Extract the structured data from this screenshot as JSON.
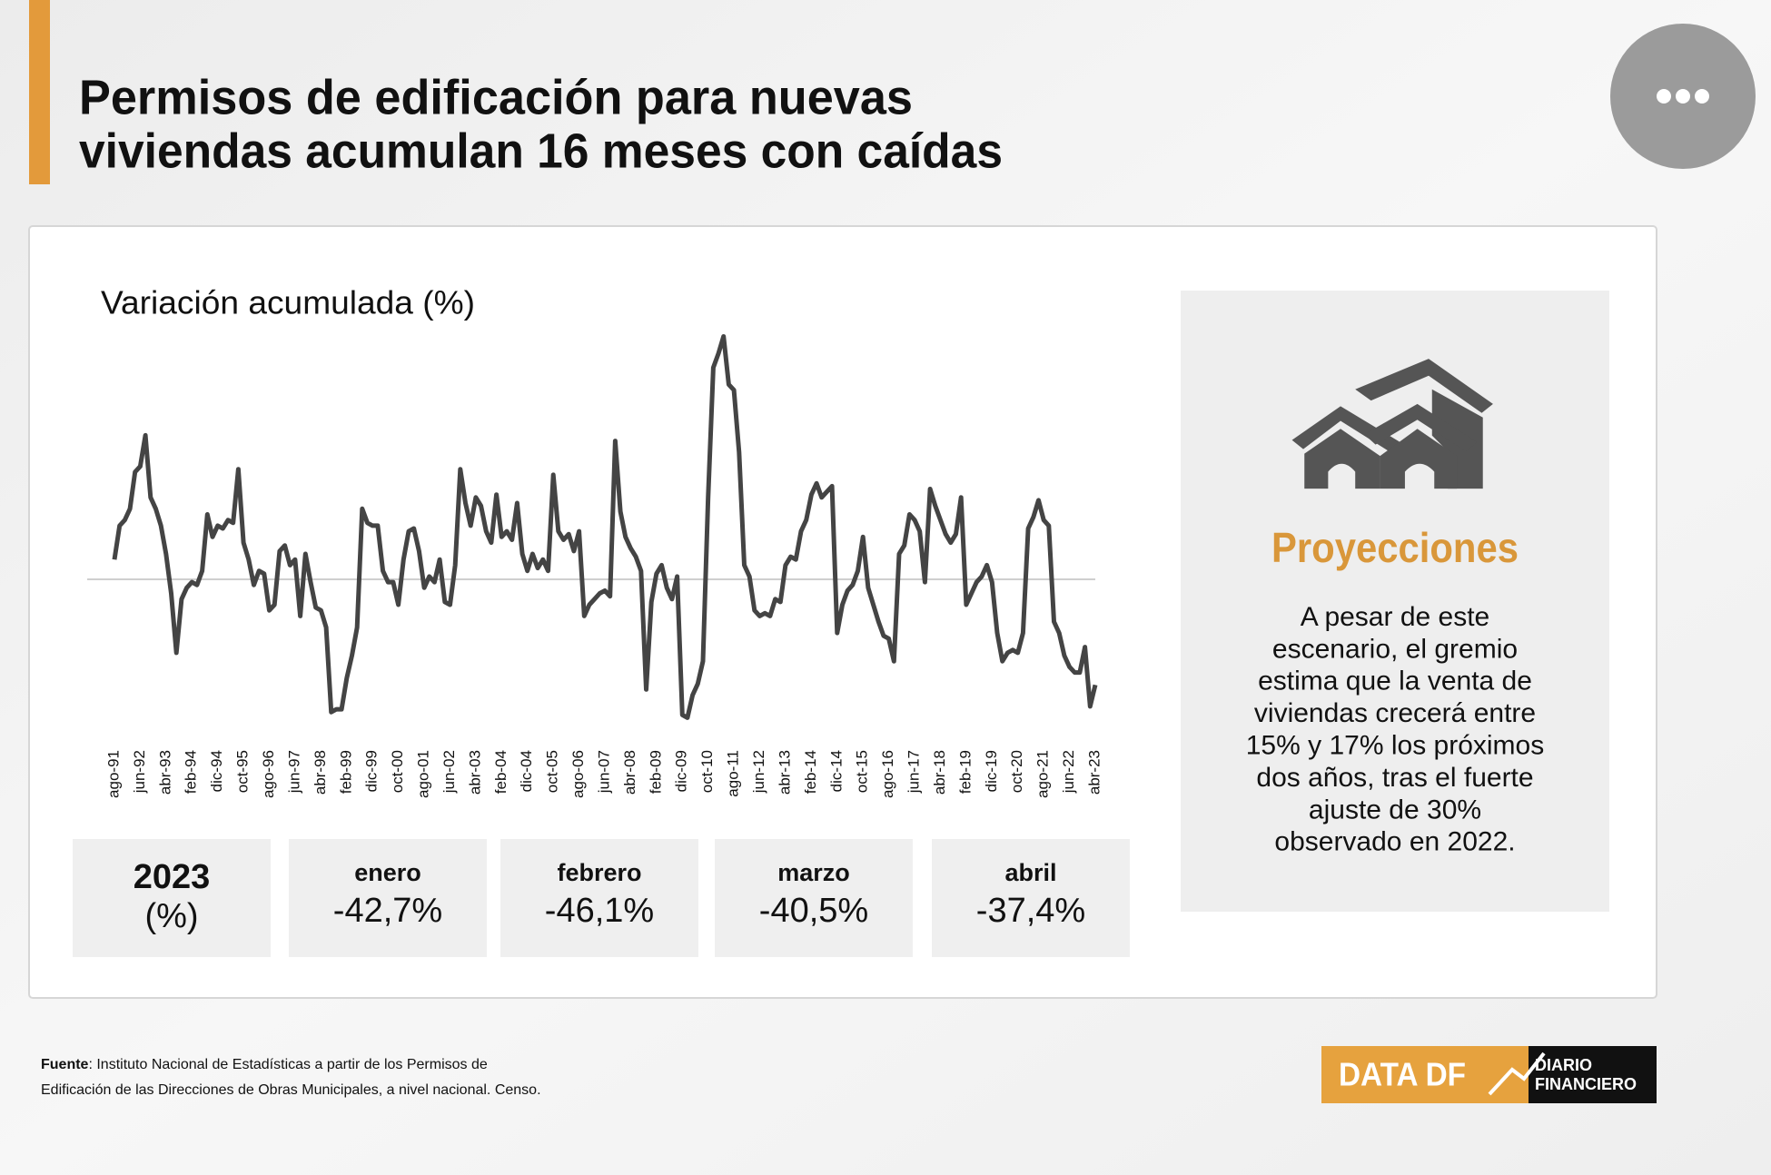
{
  "header": {
    "title_lines": [
      "Permisos de edificación para nuevas",
      "viviendas acumulan 16 meses con caídas"
    ]
  },
  "chart_data": {
    "type": "line",
    "y_label": "Variación acumulada (%)",
    "categories": [
      "ago-91",
      null,
      null,
      null,
      null,
      "jun-92",
      null,
      null,
      null,
      null,
      "abr-93",
      null,
      null,
      null,
      null,
      "feb-94",
      null,
      null,
      null,
      null,
      "dic-94",
      null,
      null,
      null,
      null,
      "oct-95",
      null,
      null,
      null,
      null,
      "ago-96",
      null,
      null,
      null,
      null,
      "jun-97",
      null,
      null,
      null,
      null,
      "abr-98",
      null,
      null,
      null,
      null,
      "feb-99",
      null,
      null,
      null,
      null,
      "dic-99",
      null,
      null,
      null,
      null,
      "oct-00",
      null,
      null,
      null,
      null,
      "ago-01",
      null,
      null,
      null,
      null,
      "jun-02",
      null,
      null,
      null,
      null,
      "abr-03",
      null,
      null,
      null,
      null,
      "feb-04",
      null,
      null,
      null,
      null,
      "dic-04",
      null,
      null,
      null,
      null,
      "oct-05",
      null,
      null,
      null,
      null,
      "ago-06",
      null,
      null,
      null,
      null,
      "jun-07",
      null,
      null,
      null,
      null,
      "abr-08",
      null,
      null,
      null,
      null,
      "feb-09",
      null,
      null,
      null,
      null,
      "dic-09",
      null,
      null,
      null,
      null,
      "oct-10",
      null,
      null,
      null,
      null,
      "ago-11",
      null,
      null,
      null,
      null,
      "jun-12",
      null,
      null,
      null,
      null,
      "abr-13",
      null,
      null,
      null,
      null,
      "feb-14",
      null,
      null,
      null,
      null,
      "dic-14",
      null,
      null,
      null,
      null,
      "oct-15",
      null,
      null,
      null,
      null,
      "ago-16",
      null,
      null,
      null,
      null,
      "jun-17",
      null,
      null,
      null,
      null,
      "abr-18",
      null,
      null,
      null,
      null,
      "feb-19",
      null,
      null,
      null,
      null,
      "dic-19",
      null,
      null,
      null,
      null,
      "oct-20",
      null,
      null,
      null,
      null,
      "ago-21",
      null,
      null,
      null,
      null,
      "jun-22",
      null,
      null,
      null,
      null,
      "abr-23"
    ],
    "values": [
      7,
      19,
      21,
      25,
      38,
      40,
      51,
      29,
      25,
      19,
      9,
      -5,
      -26,
      -7,
      -3,
      -1,
      -2,
      3,
      23,
      15,
      19,
      18,
      21,
      20,
      39,
      13,
      7,
      -2,
      3,
      2,
      -11,
      -9,
      10,
      12,
      5,
      7,
      -13,
      9,
      -1,
      -10,
      -11,
      -17,
      -47,
      -46,
      -46,
      -35,
      -27,
      -17,
      25,
      20,
      19,
      19,
      3,
      -1,
      -1,
      -9,
      7,
      17,
      18,
      10,
      -3,
      1,
      -1,
      7,
      -8,
      -9,
      5,
      39,
      27,
      19,
      29,
      26,
      17,
      13,
      30,
      15,
      17,
      14,
      27,
      9,
      3,
      9,
      4,
      7,
      3,
      37,
      17,
      14,
      16,
      10,
      17,
      -13,
      -9,
      -7,
      -5,
      -4,
      -6,
      49,
      24,
      15,
      11,
      8,
      3,
      -39,
      -8,
      2,
      5,
      -3,
      -7,
      1,
      -48,
      -49,
      -41,
      -37,
      -29,
      29,
      75,
      80,
      86,
      69,
      67,
      45,
      5,
      1,
      -11,
      -13,
      -12,
      -13,
      -7,
      -8,
      5,
      8,
      7,
      17,
      21,
      30,
      34,
      29,
      31,
      33,
      -19,
      -9,
      -4,
      -2,
      3,
      15,
      -3,
      -9,
      -15,
      -20,
      -21,
      -29,
      9,
      12,
      23,
      21,
      17,
      -1,
      32,
      26,
      21,
      16,
      13,
      16,
      29,
      -9,
      -5,
      -1,
      1,
      5,
      -1,
      -19,
      -29,
      -26,
      -25,
      -26,
      -19,
      18,
      22,
      28,
      21,
      19,
      -15,
      -19,
      -27,
      -31,
      -33,
      -33,
      -24,
      -45,
      -37.4
    ],
    "color": "#444444",
    "ylim": [
      -55,
      95
    ],
    "zero_line": true
  },
  "stats": {
    "year": "2023",
    "unit": "(%)",
    "items": [
      {
        "month": "enero",
        "value": "-42,7%"
      },
      {
        "month": "febrero",
        "value": "-46,1%"
      },
      {
        "month": "marzo",
        "value": "-40,5%"
      },
      {
        "month": "abril",
        "value": "-37,4%"
      }
    ]
  },
  "panel": {
    "title": "Proyecciones",
    "lines": [
      "A pesar de este",
      "escenario, el gremio",
      "estima que la venta de",
      "viviendas crecerá entre",
      "15% y 17% los próximos",
      "dos años, tras el fuerte",
      "ajuste de 30%",
      "observado en 2022."
    ]
  },
  "source": {
    "label": "Fuente",
    "lines": [
      ": Instituto Nacional de Estadísticas a partir de los Permisos de",
      "Edificación de las Direcciones de Obras Municipales, a nivel nacional. Censo."
    ]
  },
  "logo": {
    "left": "DATA DF",
    "right_lines": [
      "DIARIO",
      "FINANCIERO"
    ]
  }
}
